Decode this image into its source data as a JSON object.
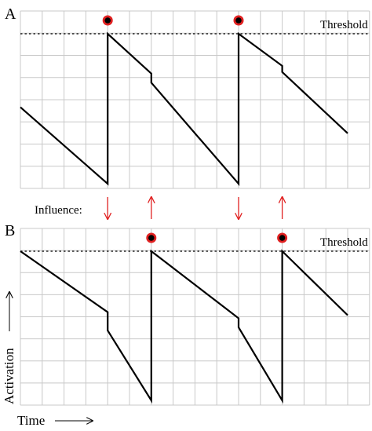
{
  "panels": [
    {
      "id": "A",
      "label": "A",
      "threshold_label": "Threshold",
      "trace": [
        [
          0,
          0.52
        ],
        [
          4,
          0.02
        ],
        [
          4,
          1.0
        ],
        [
          6,
          0.74
        ],
        [
          6,
          0.68
        ],
        [
          10,
          0.02
        ],
        [
          10,
          1.0
        ],
        [
          12,
          0.79
        ],
        [
          12,
          0.75
        ],
        [
          15,
          0.35
        ]
      ],
      "spikes": [
        4,
        10
      ]
    },
    {
      "id": "B",
      "label": "B",
      "threshold_label": "Threshold",
      "trace": [
        [
          0,
          1.0
        ],
        [
          4,
          0.6
        ],
        [
          4,
          0.48
        ],
        [
          6,
          0.02
        ],
        [
          6,
          1.0
        ],
        [
          10,
          0.56
        ],
        [
          10,
          0.5
        ],
        [
          12,
          0.02
        ],
        [
          12,
          1.0
        ],
        [
          15,
          0.58
        ]
      ],
      "spikes": [
        6,
        12
      ]
    }
  ],
  "influence": {
    "label": "Influence:",
    "arrows": [
      {
        "x": 4,
        "dir": "down"
      },
      {
        "x": 6,
        "dir": "up"
      },
      {
        "x": 10,
        "dir": "down"
      },
      {
        "x": 12,
        "dir": "up"
      }
    ]
  },
  "axes": {
    "x_label": "Time",
    "y_label": "Activation"
  },
  "colors": {
    "grid": "#c8c8c8",
    "trace": "#000000",
    "arrow": "#e02020",
    "spike_ring": "#e02020",
    "spike_core": "#000000"
  }
}
